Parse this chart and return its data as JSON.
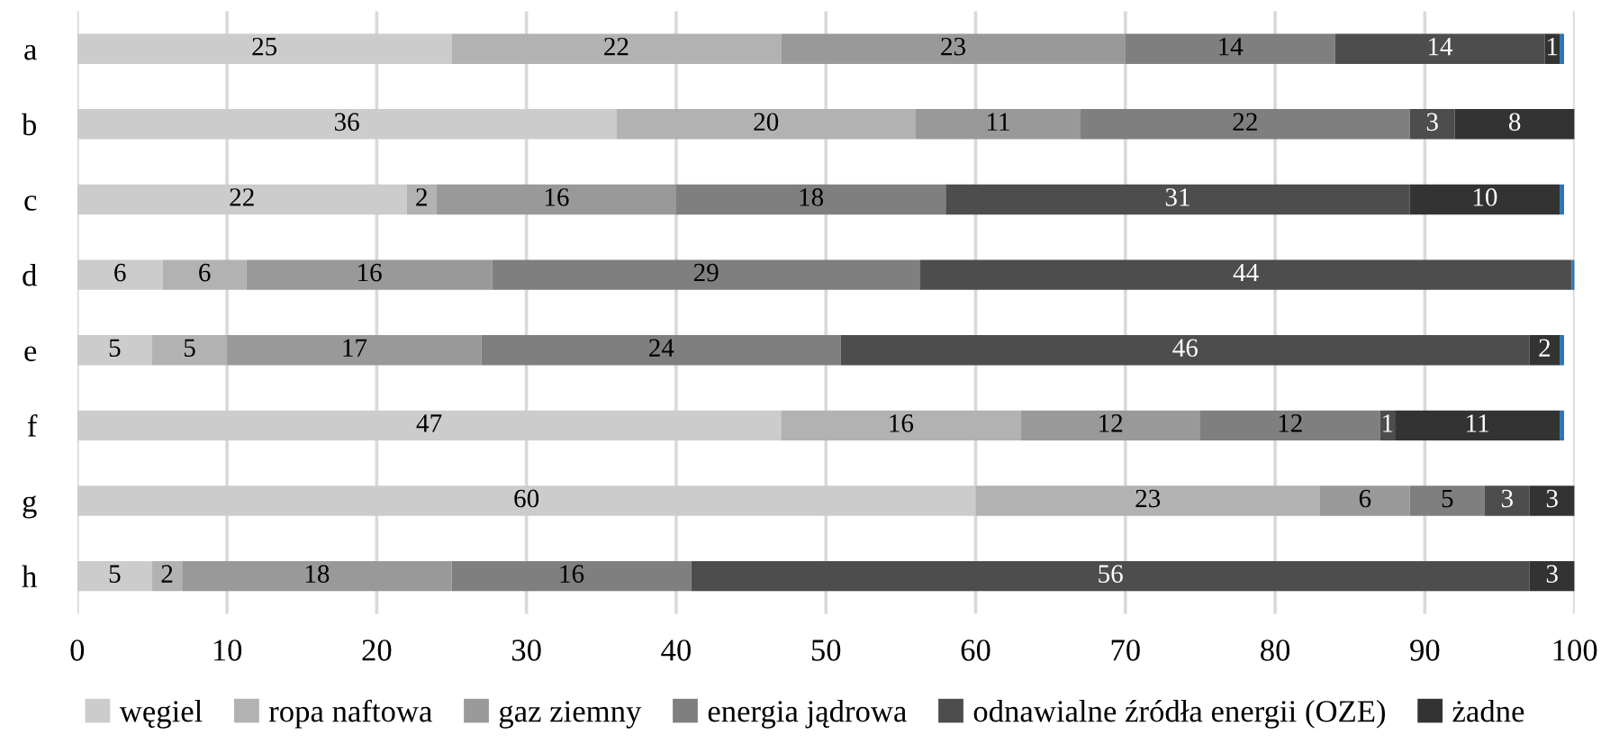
{
  "chart_data": {
    "type": "bar",
    "orientation": "horizontal",
    "stacked": true,
    "categories": [
      "a",
      "b",
      "c",
      "d",
      "e",
      "f",
      "g",
      "h"
    ],
    "series": [
      {
        "name": "węgiel",
        "color": "#cccccc",
        "values": [
          25,
          36,
          22,
          5.7,
          5,
          47,
          60,
          5
        ],
        "value_labels": [
          "25",
          "36",
          "22",
          "6",
          "5",
          "47",
          "60",
          "5"
        ]
      },
      {
        "name": "ropa naftowa",
        "color": "#b2b2b2",
        "values": [
          22,
          20,
          2,
          5.6,
          5,
          16,
          23,
          2
        ],
        "value_labels": [
          "22",
          "20",
          "2",
          "6",
          "5",
          "16",
          "23",
          "2"
        ]
      },
      {
        "name": "gaz ziemny",
        "color": "#999999",
        "values": [
          23,
          11,
          16,
          16.4,
          17,
          12,
          6,
          18
        ],
        "value_labels": [
          "23",
          "11",
          "16",
          "16",
          "17",
          "12",
          "6",
          "18"
        ]
      },
      {
        "name": "energia jądrowa",
        "color": "#7f7f7f",
        "values": [
          14,
          22,
          18,
          28.6,
          24,
          12,
          5,
          16
        ],
        "value_labels": [
          "14",
          "22",
          "18",
          "29",
          "24",
          "12",
          "5",
          "16"
        ]
      },
      {
        "name": "odnawialne źródła energii (OZE)",
        "color": "#4d4d4d",
        "values": [
          14,
          3,
          31,
          43.5,
          46,
          1,
          3,
          56
        ],
        "value_labels": [
          "14",
          "3",
          "31",
          "44",
          "46",
          "1",
          "3",
          "56"
        ]
      },
      {
        "name": "żadne",
        "color": "#333333",
        "values": [
          1,
          8,
          10,
          null,
          2,
          11,
          3,
          3
        ],
        "value_labels": [
          "1",
          "8",
          "10",
          null,
          "2",
          "11",
          "3",
          "3"
        ]
      },
      {
        "color": "#2e75b6",
        "values": [
          0.3,
          null,
          0.3,
          0.2,
          0.3,
          0.3,
          null,
          null
        ]
      }
    ],
    "xlim": [
      0,
      100
    ],
    "xticks": [
      0,
      10,
      20,
      30,
      40,
      50,
      60,
      70,
      80,
      90,
      100
    ],
    "grid": "x",
    "legend": "bottom"
  }
}
